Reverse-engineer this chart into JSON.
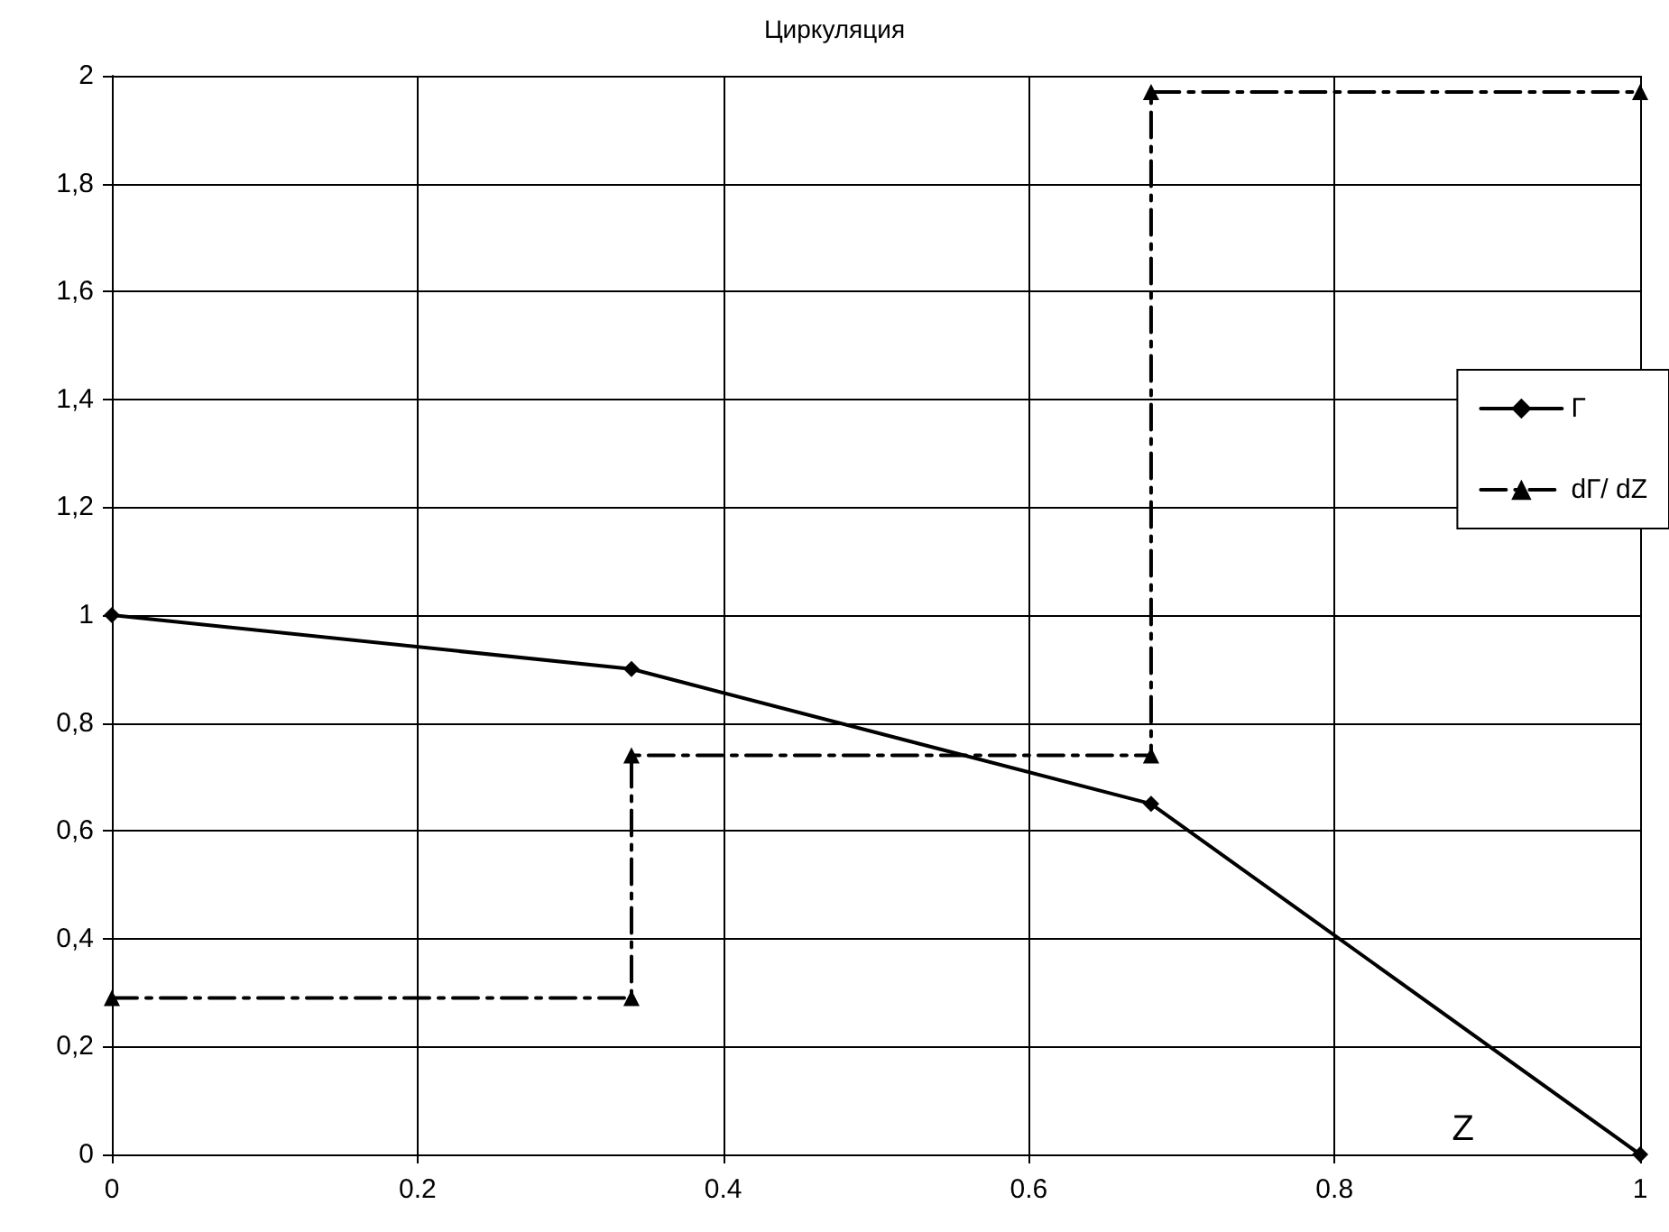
{
  "chart_data": {
    "type": "line",
    "title": "Циркуляция",
    "xlabel": "Z",
    "xlim": [
      0,
      1
    ],
    "xticks": [
      0,
      0.2,
      0.4,
      0.6,
      0.8,
      1
    ],
    "ylim": [
      0,
      2
    ],
    "yticks": [
      0,
      {
        "value": 0.2,
        "label": "0,2"
      },
      {
        "value": 0.4,
        "label": "0,4"
      },
      {
        "value": 0.6,
        "label": "0,6"
      },
      {
        "value": 0.8,
        "label": "0,8"
      },
      1,
      {
        "value": 1.2,
        "label": "1,2"
      },
      {
        "value": 1.4,
        "label": "1,4"
      },
      {
        "value": 1.6,
        "label": "1,6"
      },
      {
        "value": 1.8,
        "label": "1,8"
      },
      2
    ],
    "grid": true,
    "legend": "right",
    "series": [
      {
        "name": "Г",
        "color": "#000000",
        "marker": "diamond",
        "line_style": "solid",
        "x": [
          0,
          0.34,
          0.68,
          1
        ],
        "values": [
          1,
          0.9,
          0.65,
          0
        ]
      },
      {
        "name": "dГ/ dZ",
        "color": "#000000",
        "marker": "triangle",
        "line_style": "dashed",
        "x": [
          0,
          0.34,
          0.34,
          0.68,
          0.68,
          1
        ],
        "values": [
          0.29,
          0.29,
          0.74,
          0.74,
          1.97,
          1.97
        ]
      }
    ]
  }
}
